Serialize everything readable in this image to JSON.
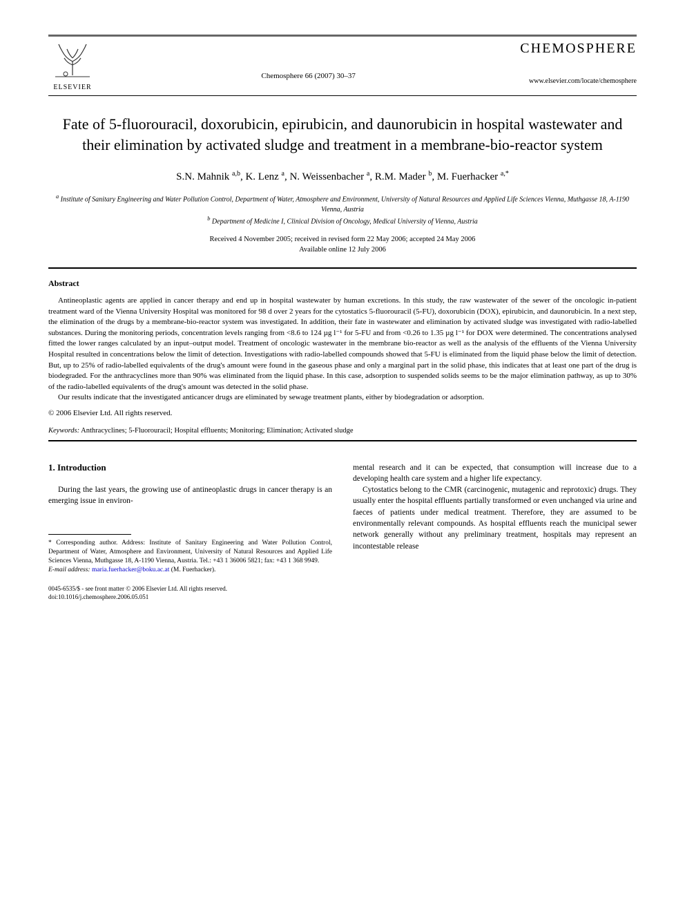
{
  "header": {
    "publisher": "ELSEVIER",
    "journal_ref": "Chemosphere 66 (2007) 30–37",
    "journal_name": "CHEMOSPHERE",
    "journal_url": "www.elsevier.com/locate/chemosphere"
  },
  "title": "Fate of 5-fluorouracil, doxorubicin, epirubicin, and daunorubicin in hospital wastewater and their elimination by activated sludge and treatment in a membrane-bio-reactor system",
  "authors_html": "S.N. Mahnik <sup>a,b</sup>, K. Lenz <sup>a</sup>, N. Weissenbacher <sup>a</sup>, R.M. Mader <sup>b</sup>, M. Fuerhacker <sup>a,*</sup>",
  "affiliations": {
    "a": "Institute of Sanitary Engineering and Water Pollution Control, Department of Water, Atmosphere and Environment, University of Natural Resources and Applied Life Sciences Vienna, Muthgasse 18, A-1190 Vienna, Austria",
    "b": "Department of Medicine I, Clinical Division of Oncology, Medical University of Vienna, Austria"
  },
  "dates": {
    "received": "Received 4 November 2005; received in revised form 22 May 2006; accepted 24 May 2006",
    "available": "Available online 12 July 2006"
  },
  "abstract": {
    "label": "Abstract",
    "p1": "Antineoplastic agents are applied in cancer therapy and end up in hospital wastewater by human excretions. In this study, the raw wastewater of the sewer of the oncologic in-patient treatment ward of the Vienna University Hospital was monitored for 98 d over 2 years for the cytostatics 5-fluorouracil (5-FU), doxorubicin (DOX), epirubicin, and daunorubicin. In a next step, the elimination of the drugs by a membrane-bio-reactor system was investigated. In addition, their fate in wastewater and elimination by activated sludge was investigated with radio-labelled substances. During the monitoring periods, concentration levels ranging from <8.6 to 124 µg l⁻¹ for 5-FU and from <0.26 to 1.35 µg l⁻¹ for DOX were determined. The concentrations analysed fitted the lower ranges calculated by an input–output model. Treatment of oncologic wastewater in the membrane bio-reactor as well as the analysis of the effluents of the Vienna University Hospital resulted in concentrations below the limit of detection. Investigations with radio-labelled compounds showed that 5-FU is eliminated from the liquid phase below the limit of detection. But, up to 25% of radio-labelled equivalents of the drug's amount were found in the gaseous phase and only a marginal part in the solid phase, this indicates that at least one part of the drug is biodegraded. For the anthracyclines more than 90% was eliminated from the liquid phase. In this case, adsorption to suspended solids seems to be the major elimination pathway, as up to 30% of the radio-labelled equivalents of the drug's amount was detected in the solid phase.",
    "p2": "Our results indicate that the investigated anticancer drugs are eliminated by sewage treatment plants, either by biodegradation or adsorption.",
    "copyright": "© 2006 Elsevier Ltd. All rights reserved."
  },
  "keywords": {
    "label": "Keywords:",
    "text": "Anthracyclines; 5-Fluorouracil; Hospital effluents; Monitoring; Elimination; Activated sludge"
  },
  "introduction": {
    "heading": "1. Introduction",
    "col1": "During the last years, the growing use of antineoplastic drugs in cancer therapy is an emerging issue in environ-",
    "col2_p1": "mental research and it can be expected, that consumption will increase due to a developing health care system and a higher life expectancy.",
    "col2_p2": "Cytostatics belong to the CMR (carcinogenic, mutagenic and reprotoxic) drugs. They usually enter the hospital effluents partially transformed or even unchanged via urine and faeces of patients under medical treatment. Therefore, they are assumed to be environmentally relevant compounds. As hospital effluents reach the municipal sewer network generally without any preliminary treatment, hospitals may represent an incontestable release"
  },
  "footnote": {
    "corr": "* Corresponding author. Address: Institute of Sanitary Engineering and Water Pollution Control, Department of Water, Atmosphere and Environment, University of Natural Resources and Applied Life Sciences Vienna, Muthgasse 18, A-1190 Vienna, Austria. Tel.: +43 1 36006 5821; fax: +43 1 368 9949.",
    "email_label": "E-mail address:",
    "email": "maria.fuerhacker@boku.ac.at",
    "email_suffix": "(M. Fuerhacker)."
  },
  "footer": {
    "line1": "0045-6535/$ - see front matter © 2006 Elsevier Ltd. All rights reserved.",
    "line2": "doi:10.1016/j.chemosphere.2006.05.051"
  },
  "colors": {
    "text": "#000000",
    "bg": "#ffffff",
    "link": "#0000cc",
    "rule": "#000000",
    "headerbar": "#666666"
  },
  "fonts": {
    "body_family": "Georgia, Times New Roman, serif",
    "title_size_pt": 17,
    "body_size_pt": 9,
    "abstract_size_pt": 8.5,
    "footnote_size_pt": 7.5
  }
}
